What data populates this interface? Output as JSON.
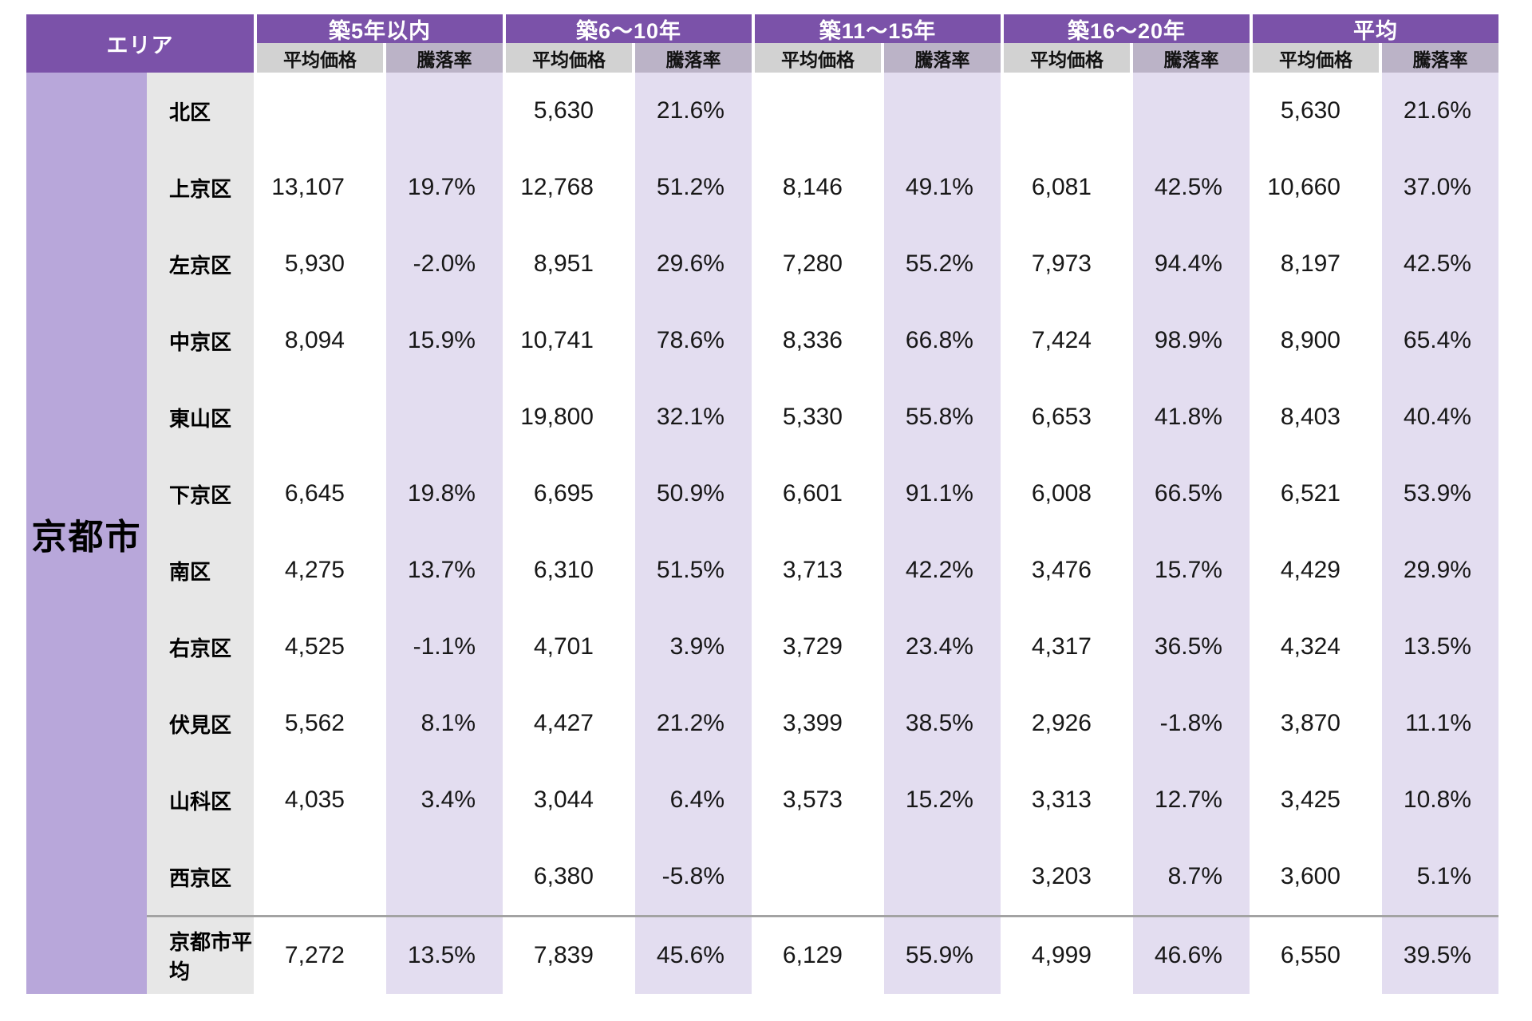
{
  "table": {
    "area_header": "エリア",
    "city_label": "京都市",
    "subheaders": {
      "price": "平均価格",
      "rate": "騰落率"
    }
  },
  "colors": {
    "header_purple": "#7B52A9",
    "subheader_price_gray": "#D2D2D2",
    "subheader_rate_lavender": "#BBB3C7",
    "rate_column_lavender": "#E3DDF0",
    "city_column_purple": "#B8A7DA",
    "ward_column_gray": "#E7E7E7",
    "separator_gray": "#A3A3A3",
    "text_black": "#171717"
  },
  "chart_data": {
    "type": "table",
    "row_header": "エリア",
    "row_group_label": "京都市",
    "column_groups": [
      "築5年以内",
      "築6〜10年",
      "築11〜15年",
      "築16〜20年",
      "平均"
    ],
    "metrics": [
      "平均価格",
      "騰落率"
    ],
    "rate_format": "percent_one_decimal",
    "rows": [
      {
        "label": "北区",
        "values": [
          [
            null,
            null
          ],
          [
            5630,
            21.6
          ],
          [
            null,
            null
          ],
          [
            null,
            null
          ],
          [
            5630,
            21.6
          ]
        ]
      },
      {
        "label": "上京区",
        "values": [
          [
            13107,
            19.7
          ],
          [
            12768,
            51.2
          ],
          [
            8146,
            49.1
          ],
          [
            6081,
            42.5
          ],
          [
            10660,
            37.0
          ]
        ]
      },
      {
        "label": "左京区",
        "values": [
          [
            5930,
            -2.0
          ],
          [
            8951,
            29.6
          ],
          [
            7280,
            55.2
          ],
          [
            7973,
            94.4
          ],
          [
            8197,
            42.5
          ]
        ]
      },
      {
        "label": "中京区",
        "values": [
          [
            8094,
            15.9
          ],
          [
            10741,
            78.6
          ],
          [
            8336,
            66.8
          ],
          [
            7424,
            98.9
          ],
          [
            8900,
            65.4
          ]
        ]
      },
      {
        "label": "東山区",
        "values": [
          [
            null,
            null
          ],
          [
            19800,
            32.1
          ],
          [
            5330,
            55.8
          ],
          [
            6653,
            41.8
          ],
          [
            8403,
            40.4
          ]
        ]
      },
      {
        "label": "下京区",
        "values": [
          [
            6645,
            19.8
          ],
          [
            6695,
            50.9
          ],
          [
            6601,
            91.1
          ],
          [
            6008,
            66.5
          ],
          [
            6521,
            53.9
          ]
        ]
      },
      {
        "label": "南区",
        "values": [
          [
            4275,
            13.7
          ],
          [
            6310,
            51.5
          ],
          [
            3713,
            42.2
          ],
          [
            3476,
            15.7
          ],
          [
            4429,
            29.9
          ]
        ]
      },
      {
        "label": "右京区",
        "values": [
          [
            4525,
            -1.1
          ],
          [
            4701,
            3.9
          ],
          [
            3729,
            23.4
          ],
          [
            4317,
            36.5
          ],
          [
            4324,
            13.5
          ]
        ]
      },
      {
        "label": "伏見区",
        "values": [
          [
            5562,
            8.1
          ],
          [
            4427,
            21.2
          ],
          [
            3399,
            38.5
          ],
          [
            2926,
            -1.8
          ],
          [
            3870,
            11.1
          ]
        ]
      },
      {
        "label": "山科区",
        "values": [
          [
            4035,
            3.4
          ],
          [
            3044,
            6.4
          ],
          [
            3573,
            15.2
          ],
          [
            3313,
            12.7
          ],
          [
            3425,
            10.8
          ]
        ]
      },
      {
        "label": "西京区",
        "values": [
          [
            null,
            null
          ],
          [
            6380,
            -5.8
          ],
          [
            null,
            null
          ],
          [
            3203,
            8.7
          ],
          [
            3600,
            5.1
          ]
        ]
      },
      {
        "label": "京都市平均",
        "values": [
          [
            7272,
            13.5
          ],
          [
            7839,
            45.6
          ],
          [
            6129,
            55.9
          ],
          [
            4999,
            46.6
          ],
          [
            6550,
            39.5
          ]
        ]
      }
    ]
  }
}
